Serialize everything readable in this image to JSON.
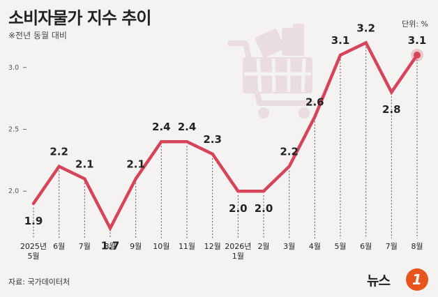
{
  "title": "소비자물가 지수 추이",
  "subtitle": "※전년 동월 대비",
  "unit_label": "단위: %",
  "source": "자료: 국가데이터처",
  "logo_text": "뉴스1",
  "colors": {
    "line": "#d6445b",
    "grid": "#555555",
    "icon": "#eadde0",
    "logo_orange": "#e8541e"
  },
  "chart_data": {
    "type": "line",
    "title": "소비자물가 지수 추이",
    "subtitle": "※전년 동월 대비",
    "categories": [
      "2025년 5월",
      "6월",
      "7월",
      "8월",
      "9월",
      "10월",
      "11월",
      "12월",
      "2026년 1월",
      "2월",
      "3월",
      "4월",
      "5월",
      "6월",
      "7월",
      "8월"
    ],
    "category_lines": [
      [
        "2025년",
        "5월"
      ],
      [
        "6월"
      ],
      [
        "7월"
      ],
      [
        "8월"
      ],
      [
        "9월"
      ],
      [
        "10월"
      ],
      [
        "11월"
      ],
      [
        "12월"
      ],
      [
        "2026년",
        "1월"
      ],
      [
        "2월"
      ],
      [
        "3월"
      ],
      [
        "4월"
      ],
      [
        "5월"
      ],
      [
        "6월"
      ],
      [
        "7월"
      ],
      [
        "8월"
      ]
    ],
    "series": [
      {
        "values": [
          1.9,
          2.2,
          2.1,
          1.7,
          2.1,
          2.4,
          2.4,
          2.3,
          2.0,
          2.0,
          2.2,
          2.6,
          3.1,
          3.2,
          2.8,
          3.1
        ]
      }
    ],
    "value_labels": [
      "1.9",
      "2.2",
      "2.1",
      "1.7",
      "2.1",
      "2.4",
      "2.4",
      "2.3",
      "2.0",
      "2.0",
      "2.2",
      "2.6",
      "3.1",
      "3.2",
      "2.8",
      "3.1"
    ],
    "yticks": [
      2.0,
      2.5,
      3.0
    ],
    "ytick_labels": [
      "2.0",
      "2.5",
      "3.0"
    ],
    "ylim": [
      1.55,
      3.32
    ],
    "grid": "vertical dashed drop lines"
  }
}
